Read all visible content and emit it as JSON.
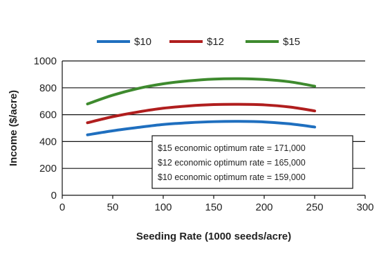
{
  "chart_data": {
    "type": "line",
    "xlabel": "Seeding Rate (1000 seeds/acre)",
    "ylabel": "Income ($/acre)",
    "xlim": [
      0,
      300
    ],
    "ylim": [
      0,
      1000
    ],
    "x_ticks": [
      0,
      50,
      100,
      150,
      200,
      250,
      300
    ],
    "y_ticks": [
      0,
      200,
      400,
      600,
      800,
      1000
    ],
    "grid": "horizontal",
    "legend_position": "top",
    "series": [
      {
        "name": "$10",
        "color": "#1f6fbf",
        "x": [
          25,
          50,
          75,
          100,
          125,
          150,
          175,
          200,
          225,
          250
        ],
        "y": [
          450,
          480,
          505,
          527,
          540,
          548,
          550,
          546,
          532,
          508
        ]
      },
      {
        "name": "$12",
        "color": "#b01e1e",
        "x": [
          25,
          50,
          75,
          100,
          125,
          150,
          175,
          200,
          225,
          250
        ],
        "y": [
          540,
          585,
          620,
          648,
          665,
          675,
          677,
          673,
          657,
          628
        ]
      },
      {
        "name": "$15",
        "color": "#3e8a2e",
        "x": [
          25,
          50,
          75,
          100,
          125,
          150,
          175,
          200,
          225,
          250
        ],
        "y": [
          680,
          745,
          795,
          830,
          852,
          865,
          868,
          862,
          845,
          812
        ]
      }
    ],
    "annotations": [
      "$15 economic optimum rate = 171,000",
      "$12 economic optimum rate = 165,000",
      "$10 economic optimum rate = 159,000"
    ]
  }
}
